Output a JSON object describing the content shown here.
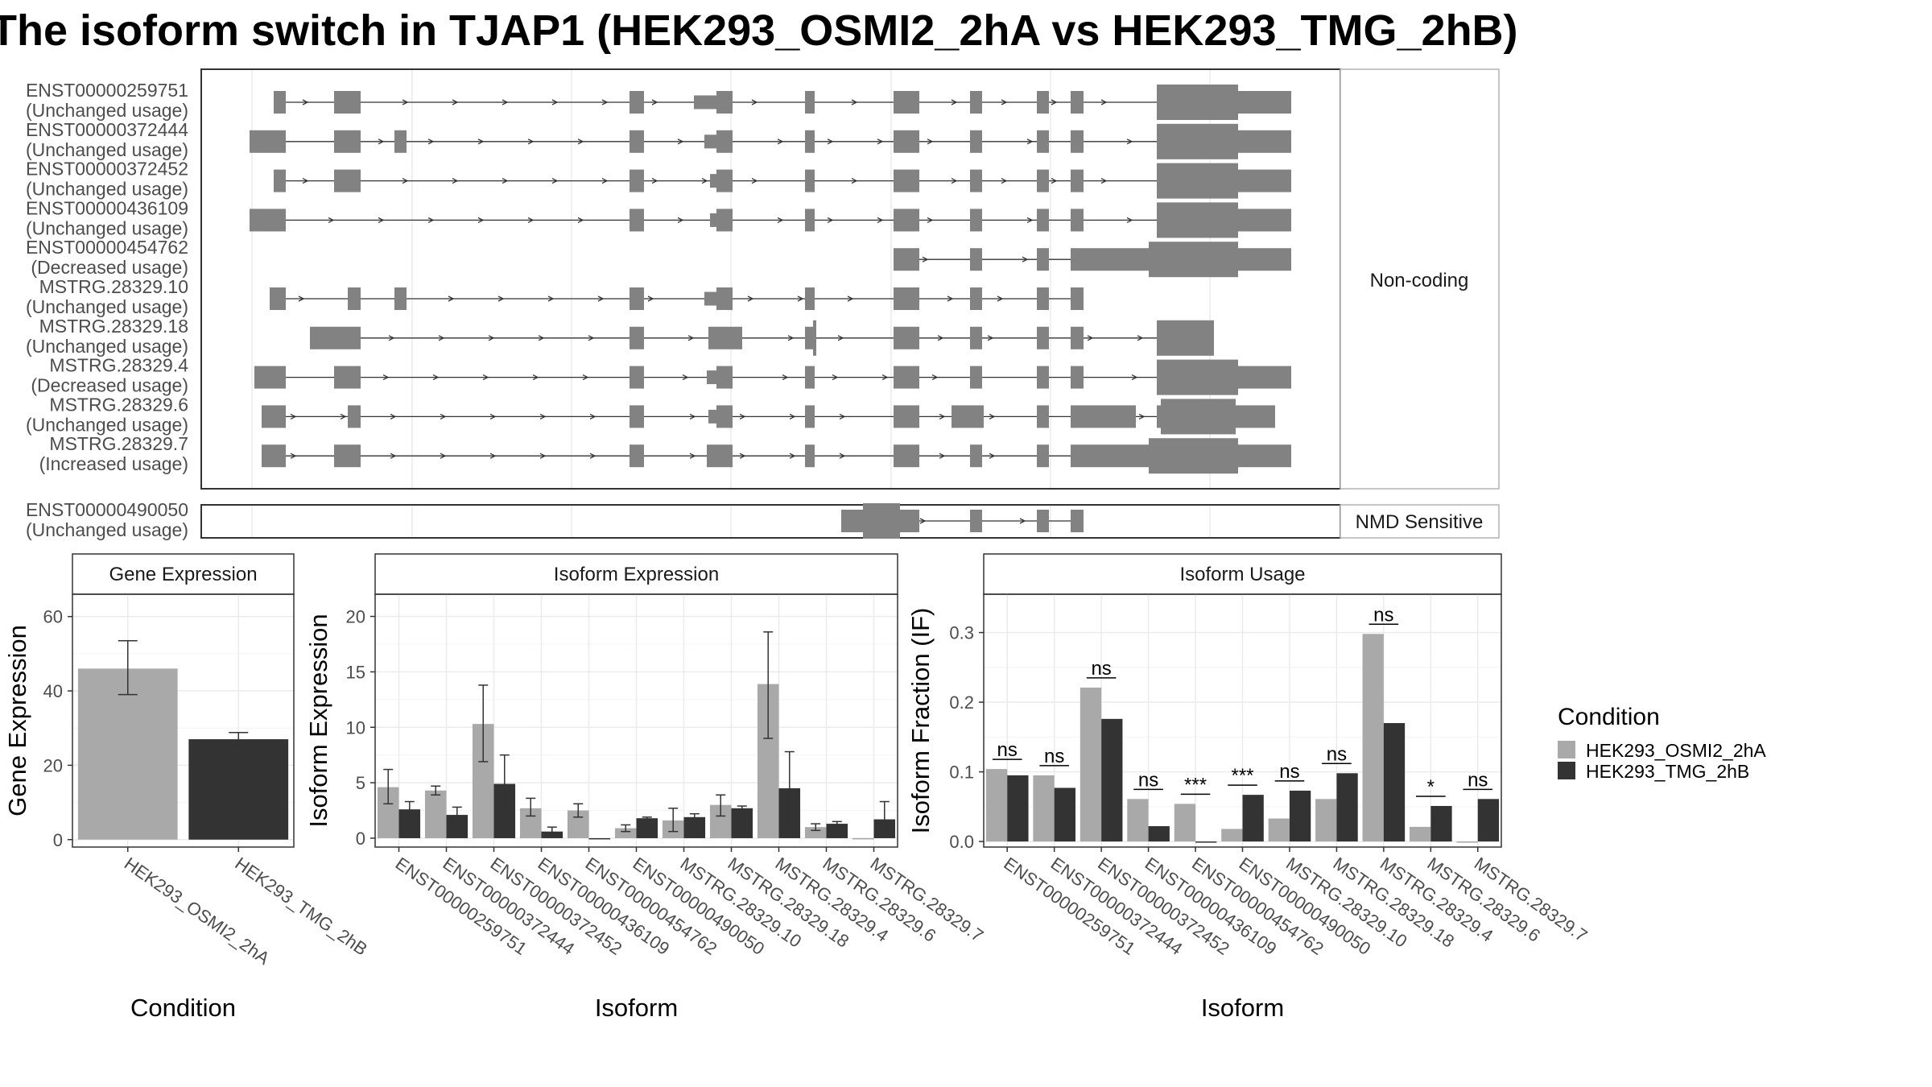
{
  "title": "The isoform switch in TJAP1 (HEK293_OSMI2_2hA vs HEK293_TMG_2hB)",
  "colors": {
    "condA": "#a9a9a9",
    "condB": "#333333",
    "exon": "#828282"
  },
  "structure": {
    "facets": [
      {
        "name": "Non-coding",
        "transcripts": [
          {
            "id": "ENST00000259751",
            "usage": "(Unchanged usage)"
          },
          {
            "id": "ENST00000372444",
            "usage": "(Unchanged usage)"
          },
          {
            "id": "ENST00000372452",
            "usage": "(Unchanged usage)"
          },
          {
            "id": "ENST00000436109",
            "usage": "(Unchanged usage)"
          },
          {
            "id": "ENST00000454762",
            "usage": "(Decreased usage)"
          },
          {
            "id": "MSTRG.28329.10",
            "usage": "(Unchanged usage)"
          },
          {
            "id": "MSTRG.28329.18",
            "usage": "(Unchanged usage)"
          },
          {
            "id": "MSTRG.28329.4",
            "usage": "(Decreased usage)"
          },
          {
            "id": "MSTRG.28329.6",
            "usage": "(Unchanged usage)"
          },
          {
            "id": "MSTRG.28329.7",
            "usage": "(Increased usage)"
          }
        ]
      },
      {
        "name": "NMD Sensitive",
        "transcripts": [
          {
            "id": "ENST00000490050",
            "usage": "(Unchanged usage)"
          }
        ]
      }
    ]
  },
  "chart_data": [
    {
      "type": "bar",
      "title": "Gene Expression",
      "xlabel": "Condition",
      "ylabel": "Gene Expression",
      "categories": [
        "HEK293_OSMI2_2hA",
        "HEK293_TMG_2hB"
      ],
      "values": [
        46,
        27
      ],
      "errors": [
        [
          39,
          53.5
        ],
        [
          25.3,
          28.8
        ]
      ],
      "ylim": [
        -2,
        66
      ],
      "yticks": [
        0,
        20,
        40,
        60
      ]
    },
    {
      "type": "bar",
      "title": "Isoform Expression",
      "xlabel": "Isoform",
      "ylabel": "Isoform Expression",
      "categories": [
        "ENST00000259751",
        "ENST00000372444",
        "ENST00000372452",
        "ENST00000436109",
        "ENST00000454762",
        "ENST00000490050",
        "MSTRG.28329.10",
        "MSTRG.28329.18",
        "MSTRG.28329.4",
        "MSTRG.28329.6",
        "MSTRG.28329.7"
      ],
      "series": [
        {
          "name": "HEK293_OSMI2_2hA",
          "values": [
            4.6,
            4.3,
            10.3,
            2.7,
            2.5,
            0.9,
            1.6,
            3.0,
            13.9,
            1.0,
            0.0
          ],
          "errors": [
            [
              3.1,
              6.2
            ],
            [
              3.9,
              4.7
            ],
            [
              6.9,
              13.8
            ],
            [
              2.0,
              3.6
            ],
            [
              1.9,
              3.1
            ],
            [
              0.6,
              1.2
            ],
            [
              0.6,
              2.7
            ],
            [
              2.0,
              3.9
            ],
            [
              9.0,
              18.6
            ],
            [
              0.7,
              1.3
            ],
            [
              0,
              0
            ]
          ]
        },
        {
          "name": "HEK293_TMG_2hB",
          "values": [
            2.6,
            2.1,
            4.9,
            0.6,
            0.0,
            1.8,
            1.9,
            2.7,
            4.5,
            1.3,
            1.7
          ],
          "errors": [
            [
              1.9,
              3.3
            ],
            [
              1.5,
              2.8
            ],
            [
              2.3,
              7.5
            ],
            [
              0.2,
              1.0
            ],
            [
              0,
              0
            ],
            [
              1.7,
              1.9
            ],
            [
              1.6,
              2.2
            ],
            [
              2.4,
              2.9
            ],
            [
              1.0,
              7.8
            ],
            [
              1.1,
              1.5
            ],
            [
              0.1,
              3.3
            ]
          ]
        }
      ],
      "ylim": [
        -0.8,
        22
      ],
      "yticks": [
        0,
        5,
        10,
        15,
        20
      ]
    },
    {
      "type": "bar",
      "title": "Isoform Usage",
      "xlabel": "Isoform",
      "ylabel": "Isoform Fraction (IF)",
      "categories": [
        "ENST00000259751",
        "ENST00000372444",
        "ENST00000372452",
        "ENST00000436109",
        "ENST00000454762",
        "ENST00000490050",
        "MSTRG.28329.10",
        "MSTRG.28329.18",
        "MSTRG.28329.4",
        "MSTRG.28329.6",
        "MSTRG.28329.7"
      ],
      "series": [
        {
          "name": "HEK293_OSMI2_2hA",
          "values": [
            0.104,
            0.095,
            0.221,
            0.061,
            0.054,
            0.018,
            0.033,
            0.061,
            0.298,
            0.021,
            0.0
          ]
        },
        {
          "name": "HEK293_TMG_2hB",
          "values": [
            0.095,
            0.077,
            0.176,
            0.022,
            0.0,
            0.067,
            0.073,
            0.098,
            0.17,
            0.051,
            0.061
          ]
        }
      ],
      "significance": [
        "ns",
        "ns",
        "ns",
        "ns",
        "***",
        "***",
        "ns",
        "ns",
        "ns",
        "*",
        "ns"
      ],
      "ylim": [
        -0.008,
        0.355
      ],
      "yticks": [
        "0.0",
        "0.1",
        "0.2",
        "0.3"
      ]
    }
  ],
  "legend": {
    "title": "Condition",
    "entries": [
      "HEK293_OSMI2_2hA",
      "HEK293_TMG_2hB"
    ]
  }
}
